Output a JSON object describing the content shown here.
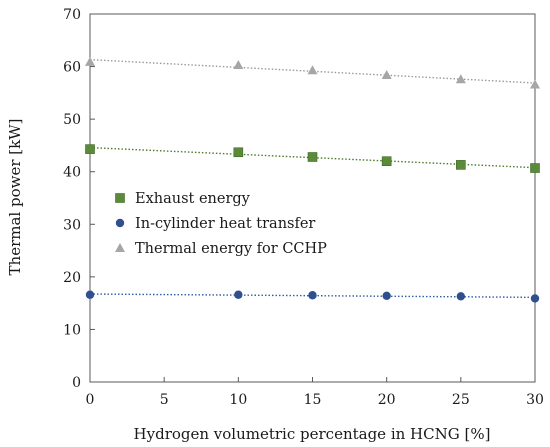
{
  "chart_data": {
    "type": "scatter",
    "title": "",
    "xlabel": "Hydrogen volumetric percentage in HCNG [%]",
    "ylabel": "Thermal power [kW]",
    "xlim": [
      0,
      30
    ],
    "ylim": [
      0,
      70
    ],
    "xticks": [
      0,
      5,
      10,
      15,
      20,
      25,
      30
    ],
    "yticks": [
      0,
      10,
      20,
      30,
      40,
      50,
      60,
      70
    ],
    "x": [
      0,
      10,
      15,
      20,
      25,
      30
    ],
    "grid": false,
    "legend_position": "center-left",
    "trendlines": "dotted linear",
    "series": [
      {
        "name": "Exhaust energy",
        "marker": "square",
        "color": "#5a8a3a",
        "trend_color": "#4a7a2a",
        "values": [
          44.3,
          43.7,
          42.8,
          42.0,
          41.3,
          40.7
        ]
      },
      {
        "name": "In-cylinder heat transfer",
        "marker": "circle",
        "color": "#2f4f8f",
        "trend_color": "#2f5fa8",
        "values": [
          16.6,
          16.6,
          16.5,
          16.4,
          16.3,
          15.9
        ]
      },
      {
        "name": "Thermal energy for CCHP",
        "marker": "triangle",
        "color": "#a6a6a6",
        "trend_color": "#9a9a9a",
        "values": [
          60.9,
          60.3,
          59.3,
          58.4,
          57.6,
          56.6
        ]
      }
    ]
  }
}
